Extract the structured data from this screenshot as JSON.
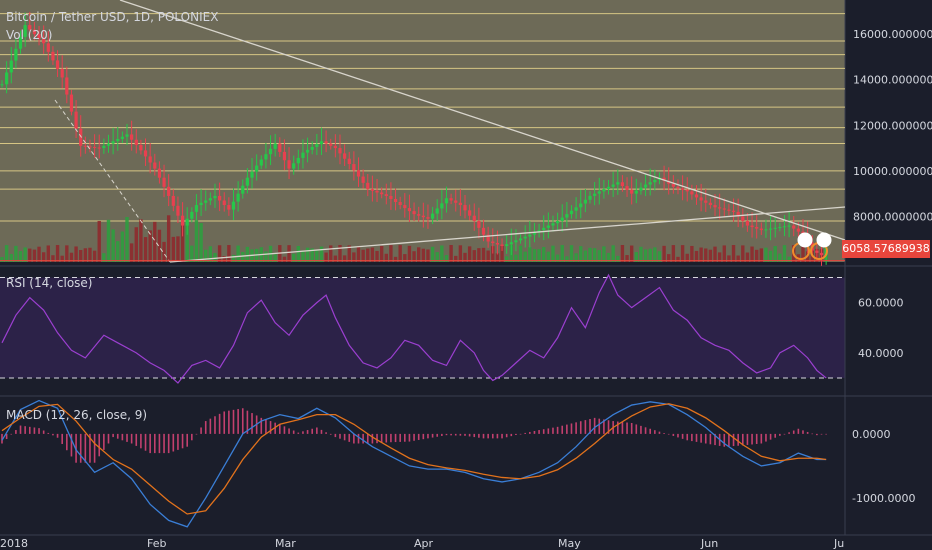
{
  "header": {
    "title": "Bitcoin / Tether USD, 1D, POLONIEX",
    "volume_label": "Vol (20)"
  },
  "price_badge": "6058.57689938",
  "colors": {
    "background": "#1b1e2b",
    "price_panel": "#6d6a57",
    "rsi_panel": "#2c2248",
    "bull": "#26c74a",
    "bear": "#e8404f",
    "rsi_line": "#9b3fd0",
    "macd_line": "#3a7ed6",
    "signal_line": "#e2721c",
    "level_line": "#e9d68d",
    "trend_line": "#d8d5cc"
  },
  "chart_data": [
    {
      "panel": "price",
      "type": "candlestick",
      "title": "Bitcoin / Tether USD, 1D, POLONIEX",
      "y_ticks": [
        "16000.00000000",
        "14000.00000000",
        "12000.00000000",
        "10000.00000000",
        "8000.00000000"
      ],
      "x_ticks": [
        "2018",
        "Feb",
        "Mar",
        "Apr",
        "May",
        "Jun",
        "Ju"
      ],
      "ylim": [
        6000,
        17500
      ],
      "x_range_days": [
        0,
        178
      ],
      "horizontal_levels": [
        16900,
        15700,
        15100,
        14500,
        13600,
        12800,
        11900,
        11200,
        10000,
        9200,
        7800
      ],
      "last_price": 6058.57689938,
      "close_path_anchors": [
        [
          0,
          13800
        ],
        [
          5,
          16400
        ],
        [
          9,
          15600
        ],
        [
          13,
          14100
        ],
        [
          17,
          11100
        ],
        [
          21,
          11000
        ],
        [
          24,
          11300
        ],
        [
          27,
          11600
        ],
        [
          30,
          10900
        ],
        [
          33,
          10100
        ],
        [
          36,
          8900
        ],
        [
          39,
          7600
        ],
        [
          42,
          8500
        ],
        [
          46,
          8900
        ],
        [
          49,
          8300
        ],
        [
          53,
          9700
        ],
        [
          56,
          10500
        ],
        [
          59,
          11200
        ],
        [
          62,
          10100
        ],
        [
          65,
          10800
        ],
        [
          69,
          11300
        ],
        [
          72,
          11000
        ],
        [
          75,
          10300
        ],
        [
          79,
          9200
        ],
        [
          83,
          8900
        ],
        [
          86,
          8500
        ],
        [
          89,
          8100
        ],
        [
          92,
          7900
        ],
        [
          96,
          8800
        ],
        [
          99,
          8500
        ],
        [
          102,
          7800
        ],
        [
          105,
          6900
        ],
        [
          108,
          6700
        ],
        [
          111,
          6950
        ],
        [
          114,
          7200
        ],
        [
          117,
          7500
        ],
        [
          120,
          7800
        ],
        [
          124,
          8400
        ],
        [
          127,
          8900
        ],
        [
          130,
          9200
        ],
        [
          133,
          9500
        ],
        [
          136,
          9000
        ],
        [
          139,
          9400
        ],
        [
          142,
          9700
        ],
        [
          145,
          9300
        ],
        [
          148,
          9100
        ],
        [
          151,
          8700
        ],
        [
          154,
          8400
        ],
        [
          158,
          8200
        ],
        [
          161,
          7600
        ],
        [
          164,
          7400
        ],
        [
          167,
          7500
        ],
        [
          170,
          7600
        ],
        [
          173,
          7200
        ],
        [
          175,
          6500
        ],
        [
          177,
          6300
        ],
        [
          178,
          6600
        ]
      ]
    },
    {
      "panel": "volume",
      "type": "bar",
      "title": "Vol (20)"
    },
    {
      "panel": "rsi",
      "type": "line",
      "title": "RSI (14, close)",
      "y_ticks": [
        "60.0000",
        "40.0000"
      ],
      "ylim": [
        24,
        73
      ],
      "bands": [
        70,
        30
      ],
      "points": [
        [
          0,
          44
        ],
        [
          3,
          55
        ],
        [
          6,
          62
        ],
        [
          9,
          57
        ],
        [
          12,
          48
        ],
        [
          15,
          41
        ],
        [
          18,
          38
        ],
        [
          22,
          47
        ],
        [
          25,
          44
        ],
        [
          29,
          40
        ],
        [
          32,
          36
        ],
        [
          35,
          33
        ],
        [
          38,
          28
        ],
        [
          41,
          35
        ],
        [
          44,
          37
        ],
        [
          47,
          34
        ],
        [
          50,
          43
        ],
        [
          53,
          56
        ],
        [
          56,
          61
        ],
        [
          59,
          52
        ],
        [
          62,
          47
        ],
        [
          65,
          55
        ],
        [
          68,
          60
        ],
        [
          70,
          63
        ],
        [
          72,
          54
        ],
        [
          75,
          43
        ],
        [
          78,
          36
        ],
        [
          81,
          34
        ],
        [
          84,
          38
        ],
        [
          87,
          45
        ],
        [
          90,
          43
        ],
        [
          93,
          37
        ],
        [
          96,
          35
        ],
        [
          99,
          45
        ],
        [
          102,
          40
        ],
        [
          104,
          33
        ],
        [
          106,
          29
        ],
        [
          108,
          31
        ],
        [
          111,
          36
        ],
        [
          114,
          41
        ],
        [
          117,
          38
        ],
        [
          120,
          46
        ],
        [
          123,
          58
        ],
        [
          126,
          50
        ],
        [
          129,
          64
        ],
        [
          131,
          71
        ],
        [
          133,
          63
        ],
        [
          136,
          58
        ],
        [
          139,
          62
        ],
        [
          142,
          66
        ],
        [
          145,
          57
        ],
        [
          148,
          53
        ],
        [
          151,
          46
        ],
        [
          154,
          43
        ],
        [
          157,
          41
        ],
        [
          160,
          36
        ],
        [
          163,
          32
        ],
        [
          166,
          34
        ],
        [
          168,
          40
        ],
        [
          171,
          43
        ],
        [
          174,
          38
        ],
        [
          176,
          33
        ],
        [
          178,
          30
        ]
      ]
    },
    {
      "panel": "macd",
      "type": "line",
      "title": "MACD (12, 26, close, 9)",
      "y_ticks": [
        "0.0000",
        "-1000.0000"
      ],
      "ylim": [
        -1500,
        560
      ],
      "series": [
        {
          "name": "MACD",
          "points": [
            [
              0,
              -100
            ],
            [
              4,
              380
            ],
            [
              8,
              520
            ],
            [
              12,
              400
            ],
            [
              16,
              -250
            ],
            [
              20,
              -600
            ],
            [
              24,
              -450
            ],
            [
              28,
              -700
            ],
            [
              32,
              -1100
            ],
            [
              36,
              -1350
            ],
            [
              40,
              -1450
            ],
            [
              44,
              -1000
            ],
            [
              48,
              -500
            ],
            [
              52,
              0
            ],
            [
              56,
              200
            ],
            [
              60,
              300
            ],
            [
              64,
              240
            ],
            [
              68,
              400
            ],
            [
              72,
              250
            ],
            [
              76,
              0
            ],
            [
              80,
              -200
            ],
            [
              84,
              -350
            ],
            [
              88,
              -500
            ],
            [
              92,
              -550
            ],
            [
              96,
              -550
            ],
            [
              100,
              -600
            ],
            [
              104,
              -700
            ],
            [
              108,
              -750
            ],
            [
              112,
              -700
            ],
            [
              116,
              -600
            ],
            [
              120,
              -450
            ],
            [
              124,
              -200
            ],
            [
              128,
              100
            ],
            [
              132,
              300
            ],
            [
              136,
              450
            ],
            [
              140,
              500
            ],
            [
              144,
              460
            ],
            [
              148,
              300
            ],
            [
              152,
              100
            ],
            [
              156,
              -150
            ],
            [
              160,
              -350
            ],
            [
              164,
              -500
            ],
            [
              168,
              -450
            ],
            [
              172,
              -300
            ],
            [
              176,
              -400
            ],
            [
              178,
              -400
            ]
          ]
        },
        {
          "name": "Signal",
          "points": [
            [
              0,
              50
            ],
            [
              4,
              250
            ],
            [
              8,
              430
            ],
            [
              12,
              460
            ],
            [
              16,
              200
            ],
            [
              20,
              -150
            ],
            [
              24,
              -400
            ],
            [
              28,
              -550
            ],
            [
              32,
              -800
            ],
            [
              36,
              -1050
            ],
            [
              40,
              -1250
            ],
            [
              44,
              -1200
            ],
            [
              48,
              -850
            ],
            [
              52,
              -400
            ],
            [
              56,
              -50
            ],
            [
              60,
              150
            ],
            [
              64,
              220
            ],
            [
              68,
              300
            ],
            [
              72,
              300
            ],
            [
              76,
              150
            ],
            [
              80,
              -50
            ],
            [
              84,
              -220
            ],
            [
              88,
              -380
            ],
            [
              92,
              -480
            ],
            [
              96,
              -530
            ],
            [
              100,
              -570
            ],
            [
              104,
              -630
            ],
            [
              108,
              -680
            ],
            [
              112,
              -700
            ],
            [
              116,
              -660
            ],
            [
              120,
              -560
            ],
            [
              124,
              -380
            ],
            [
              128,
              -150
            ],
            [
              132,
              100
            ],
            [
              136,
              280
            ],
            [
              140,
              420
            ],
            [
              144,
              470
            ],
            [
              148,
              400
            ],
            [
              152,
              250
            ],
            [
              156,
              50
            ],
            [
              160,
              -170
            ],
            [
              164,
              -350
            ],
            [
              168,
              -420
            ],
            [
              172,
              -380
            ],
            [
              176,
              -380
            ],
            [
              178,
              -400
            ]
          ]
        }
      ]
    }
  ]
}
